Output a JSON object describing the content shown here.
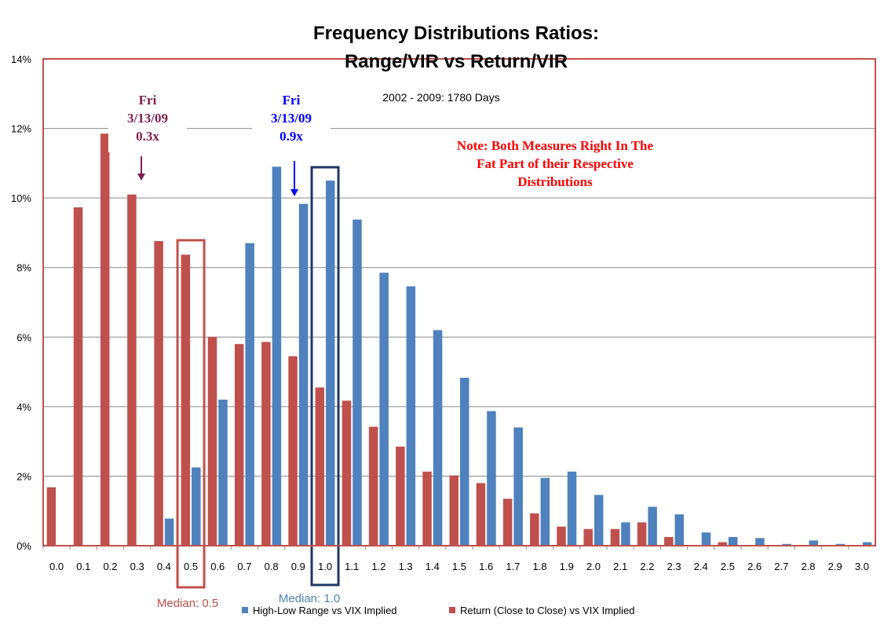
{
  "chart_data": {
    "type": "bar",
    "title": [
      "Frequency Distributions Ratios:",
      "Range/VIR  vs Return/VIR"
    ],
    "subtitle": "2002 - 2009:  1780 Days",
    "ylim": [
      0,
      14
    ],
    "yticks": [
      0,
      2,
      4,
      6,
      8,
      10,
      12,
      14
    ],
    "ytick_labels": [
      "0%",
      "2%",
      "4%",
      "6%",
      "8%",
      "10%",
      "12%",
      "14%"
    ],
    "grid": true,
    "legend_position": "bottom",
    "categories": [
      "0.0",
      "0.1",
      "0.2",
      "0.3",
      "0.4",
      "0.5",
      "0.6",
      "0.7",
      "0.8",
      "0.9",
      "1.0",
      "1.1",
      "1.2",
      "1.3",
      "1.4",
      "1.5",
      "1.6",
      "1.7",
      "1.8",
      "1.9",
      "2.0",
      "2.1",
      "2.2",
      "2.3",
      "2.4",
      "2.5",
      "2.6",
      "2.7",
      "2.8",
      "2.9",
      "3.0"
    ],
    "series": [
      {
        "name": "High-Low Range vs VIX Implied",
        "color": "#4f81bd",
        "values": [
          0,
          0,
          0,
          0,
          0.78,
          2.25,
          4.2,
          8.7,
          10.9,
          9.83,
          10.5,
          9.38,
          7.85,
          7.46,
          6.2,
          4.83,
          3.87,
          3.4,
          1.95,
          2.13,
          1.46,
          0.67,
          1.12,
          0.9,
          0.38,
          0.25,
          0.22,
          0.05,
          0.15,
          0.05,
          0.1
        ]
      },
      {
        "name": "Return (Close to Close) vs VIX Implied",
        "color": "#c0504d",
        "values": [
          1.68,
          9.73,
          11.85,
          10.1,
          8.76,
          8.37,
          6.0,
          5.8,
          5.86,
          5.45,
          4.55,
          4.17,
          3.42,
          2.85,
          2.13,
          2.02,
          1.8,
          1.35,
          0.93,
          0.55,
          0.48,
          0.48,
          0.67,
          0.25,
          0,
          0.1,
          0,
          0,
          0,
          0,
          0
        ]
      }
    ],
    "annotations": [
      {
        "lines": [
          "Fri",
          "3/13/09",
          "0.3x"
        ],
        "category": "0.3",
        "color": "#7f1f4f"
      },
      {
        "lines": [
          "Fri",
          "3/13/09",
          "0.9x"
        ],
        "category": "0.9",
        "color": "#0000ff"
      }
    ],
    "note": [
      "Note: Both Measures Right In The",
      "Fat Part of their Respective",
      "Distributions"
    ],
    "median_boxes": [
      {
        "label": "Median: 0.5",
        "category": "0.5",
        "color": "#c0504d"
      },
      {
        "label": "Median: 1.0",
        "category": "1.0",
        "color": "#1f3864",
        "label_color": "#4f81bd"
      }
    ]
  }
}
